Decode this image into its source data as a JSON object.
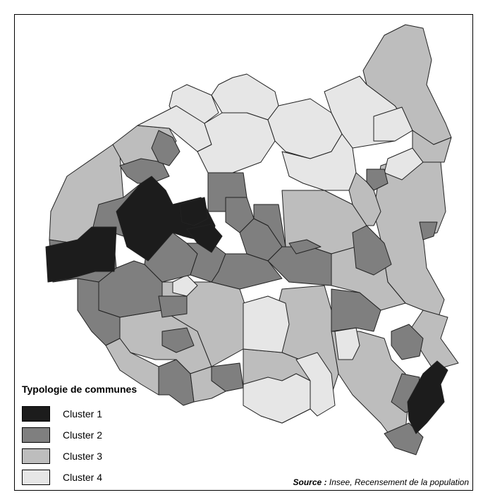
{
  "legend": {
    "title": "Typologie de communes",
    "items": [
      {
        "label": "Cluster 1",
        "color": "#1c1c1c"
      },
      {
        "label": "Cluster 2",
        "color": "#7f7f7f"
      },
      {
        "label": "Cluster 3",
        "color": "#bdbdbd"
      },
      {
        "label": "Cluster 4",
        "color": "#e6e6e6"
      }
    ]
  },
  "source": {
    "label": "Source :",
    "text": "Insee, Recensement de la population"
  },
  "colors": {
    "stroke": "#222222",
    "c1": "#1c1c1c",
    "c2": "#7f7f7f",
    "c3": "#bdbdbd",
    "c4": "#e6e6e6"
  }
}
